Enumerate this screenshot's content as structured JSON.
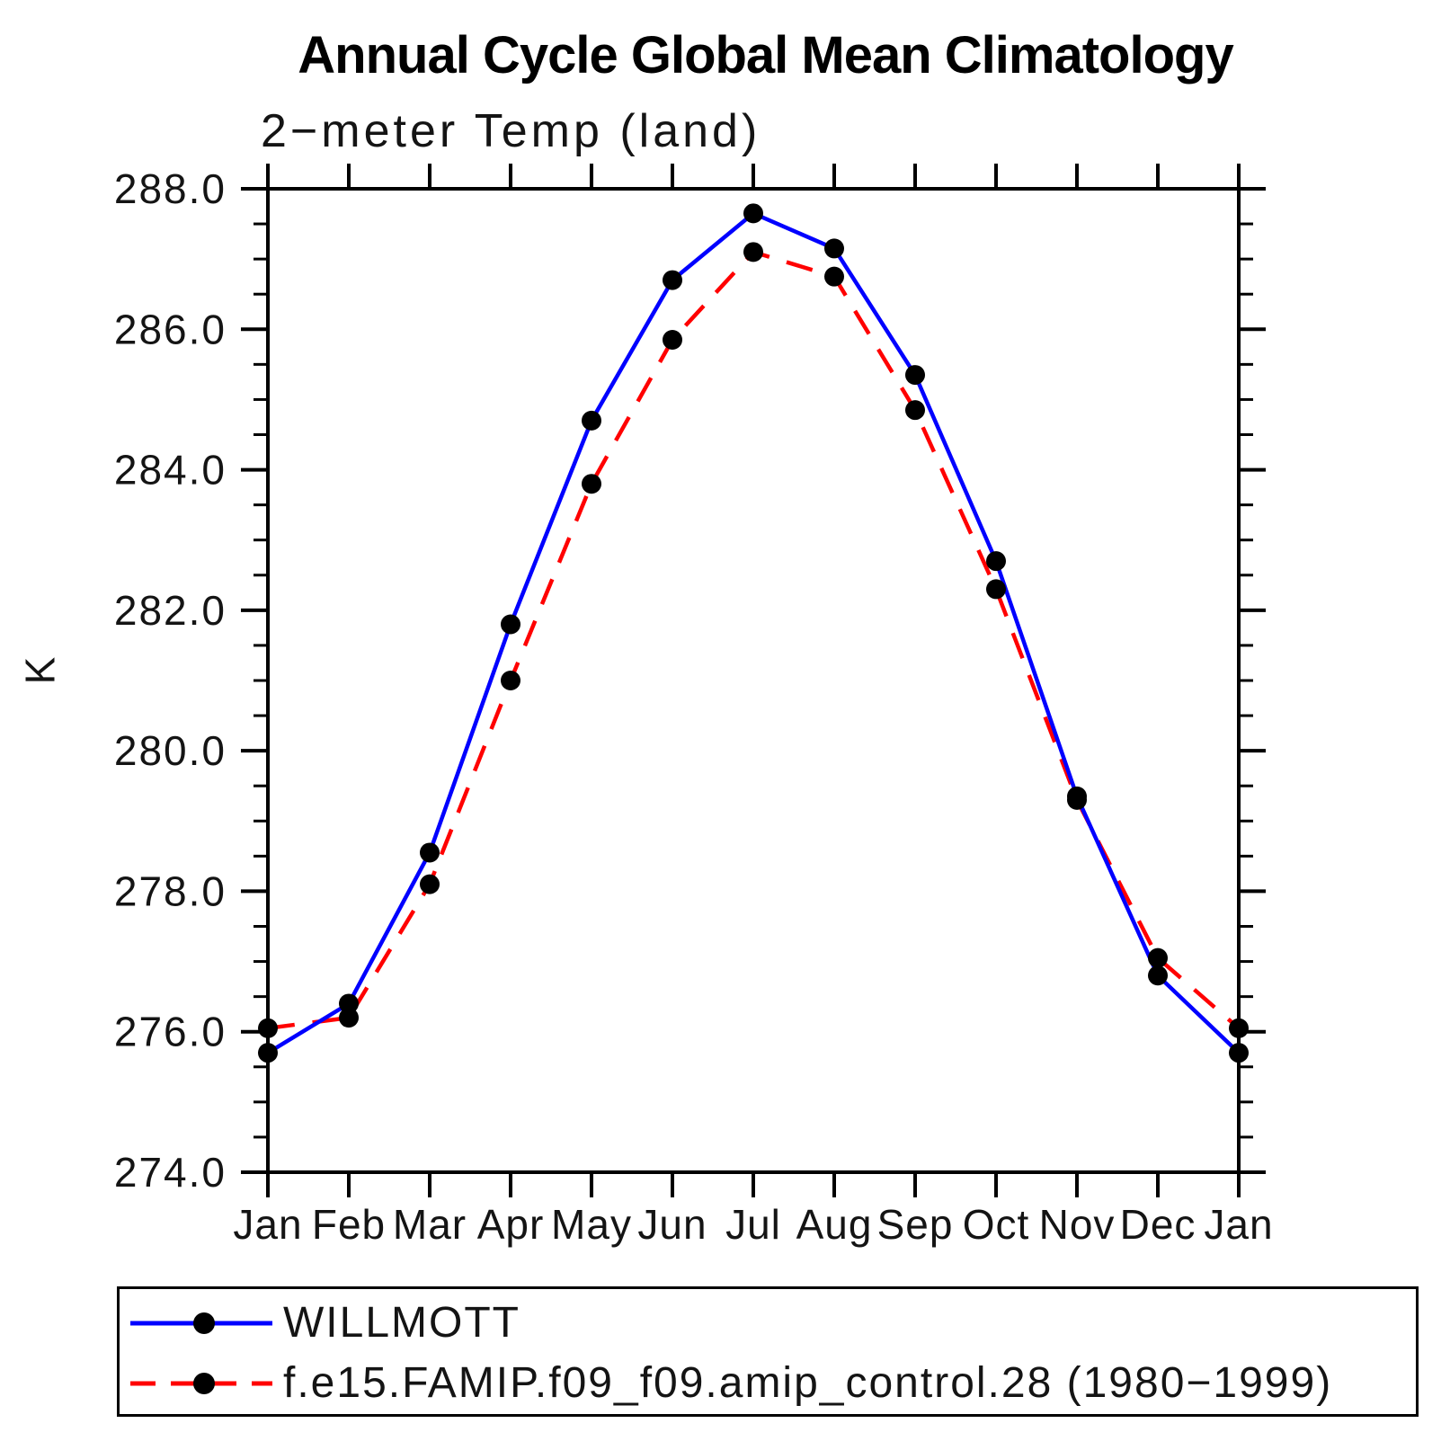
{
  "header": {
    "title": "Annual Cycle Global Mean Climatology",
    "subtitle": "2−meter Temp (land)"
  },
  "chart_data": {
    "type": "line",
    "title": "Annual Cycle Global Mean Climatology",
    "subtitle": "2−meter Temp (land)",
    "ylabel": "K",
    "xlabel": "",
    "categories": [
      "Jan",
      "Feb",
      "Mar",
      "Apr",
      "May",
      "Jun",
      "Jul",
      "Aug",
      "Sep",
      "Oct",
      "Nov",
      "Dec",
      "Jan"
    ],
    "ylim": [
      274.0,
      288.0
    ],
    "ytick_major_step": 2.0,
    "ytick_minor_step": 0.5,
    "ytick_label_format": "one-decimal",
    "grid": false,
    "legend_position": "bottom-left",
    "frame_color": "#000000",
    "series": [
      {
        "name": "WILLMOTT",
        "line_color": "#0000ff",
        "line_style": "solid",
        "marker": "filled-circle",
        "marker_color": "#000000",
        "values": [
          275.7,
          276.4,
          278.55,
          281.8,
          284.7,
          286.7,
          287.65,
          287.15,
          285.35,
          282.7,
          279.35,
          276.8,
          275.7
        ]
      },
      {
        "name": "f.e15.FAMIP.f09_f09.amip_control.28 (1980−1999)",
        "line_color": "#ff0000",
        "line_style": "dashed",
        "marker": "filled-circle",
        "marker_color": "#000000",
        "values": [
          276.05,
          276.2,
          278.1,
          281.0,
          283.8,
          285.85,
          287.1,
          286.75,
          284.85,
          282.3,
          279.3,
          277.05,
          276.05
        ]
      }
    ]
  }
}
